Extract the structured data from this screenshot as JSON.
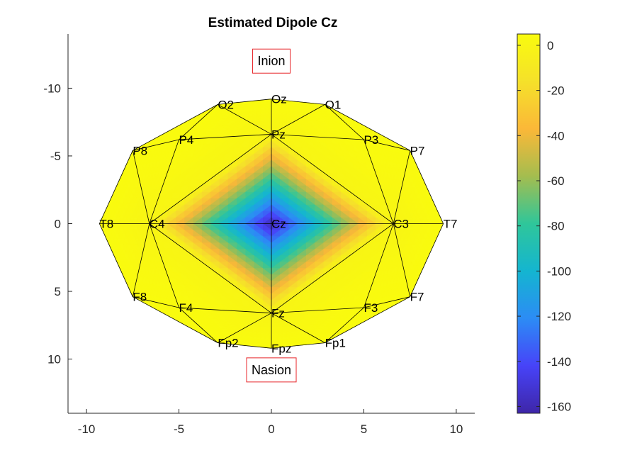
{
  "colors": {
    "axis": "#262626",
    "mesh": "#000000",
    "landmark_box": "#e8282c",
    "colormap": [
      "#3e26a8",
      "#4743f8",
      "#2c8cf5",
      "#14b5d0",
      "#2fc69a",
      "#a4bd4f",
      "#fbb838",
      "#f5e12a",
      "#f9fb0e"
    ]
  },
  "chart_data": {
    "type": "heatmap",
    "title": "Estimated Dipole Cz",
    "xlabel": "",
    "ylabel": "",
    "xlim": [
      -11,
      11
    ],
    "ylim": [
      -14,
      14
    ],
    "y_axis_direction": "reversed",
    "xticks": [
      -10,
      -5,
      0,
      5,
      10
    ],
    "xtick_labels": [
      "-10",
      "-5",
      "0",
      "5",
      "10"
    ],
    "yticks": [
      -10,
      -5,
      0,
      5,
      10
    ],
    "ytick_labels": [
      "-10",
      "-5",
      "0",
      "5",
      "10"
    ],
    "grid": false,
    "colorbar": {
      "limits": [
        -163,
        5
      ],
      "ticks": [
        0,
        -20,
        -40,
        -60,
        -80,
        -100,
        -120,
        -140,
        -160
      ],
      "tick_labels": [
        "0",
        "-20",
        "-40",
        "-60",
        "-80",
        "-100",
        "-120",
        "-140",
        "-160"
      ],
      "position": "right"
    },
    "electrodes": [
      {
        "label": "Cz",
        "x": 0,
        "y": 0,
        "value": -160
      },
      {
        "label": "Fz",
        "x": 0,
        "y": 6.6,
        "value": 0
      },
      {
        "label": "Pz",
        "x": 0,
        "y": -6.6,
        "value": 0
      },
      {
        "label": "C3",
        "x": 6.6,
        "y": 0,
        "value": 0
      },
      {
        "label": "C4",
        "x": -6.6,
        "y": 0,
        "value": 0
      },
      {
        "label": "T7",
        "x": 9.3,
        "y": 0,
        "value": 5
      },
      {
        "label": "T8",
        "x": -9.3,
        "y": 0,
        "value": 5
      },
      {
        "label": "F3",
        "x": 5.0,
        "y": 6.2,
        "value": 5
      },
      {
        "label": "F4",
        "x": -5.0,
        "y": 6.2,
        "value": 5
      },
      {
        "label": "P3",
        "x": 5.0,
        "y": -6.2,
        "value": 5
      },
      {
        "label": "P4",
        "x": -5.0,
        "y": -6.2,
        "value": 5
      },
      {
        "label": "F7",
        "x": 7.5,
        "y": 5.4,
        "value": 5
      },
      {
        "label": "F8",
        "x": -7.5,
        "y": 5.4,
        "value": 5
      },
      {
        "label": "P7",
        "x": 7.5,
        "y": -5.4,
        "value": 5
      },
      {
        "label": "P8",
        "x": -7.5,
        "y": -5.4,
        "value": 5
      },
      {
        "label": "Fp1",
        "x": 2.9,
        "y": 8.8,
        "value": 5
      },
      {
        "label": "Fp2",
        "x": -2.9,
        "y": 8.8,
        "value": 5
      },
      {
        "label": "Fpz",
        "x": 0,
        "y": 9.2,
        "value": 5
      },
      {
        "label": "O1",
        "x": 2.9,
        "y": -8.8,
        "value": 5
      },
      {
        "label": "O2",
        "x": -2.9,
        "y": -8.8,
        "value": 5
      },
      {
        "label": "Oz",
        "x": 0,
        "y": -9.2,
        "value": 5
      }
    ],
    "landmarks": [
      {
        "label": "Inion",
        "x": 0,
        "y": -12
      },
      {
        "label": "Nasion",
        "x": 0,
        "y": 10.8
      }
    ]
  }
}
